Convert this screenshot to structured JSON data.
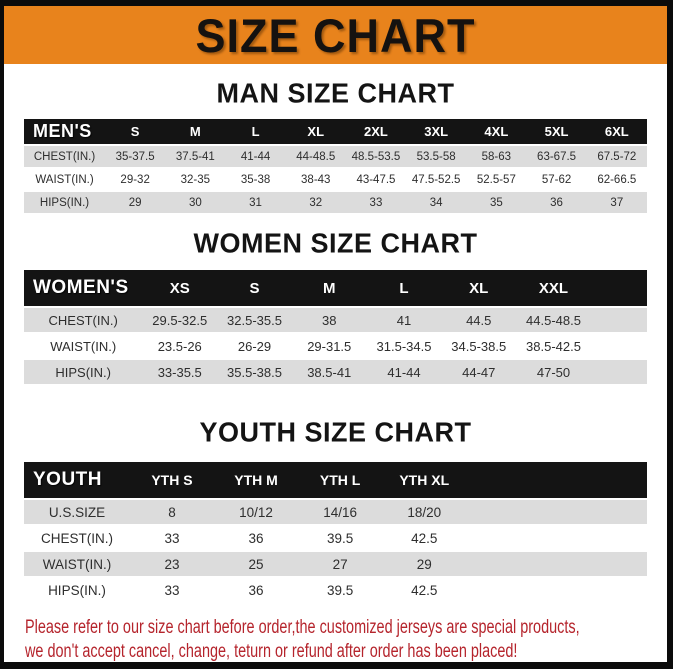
{
  "title": "SIZE CHART",
  "colors": {
    "banner_orange": "#E8831C",
    "table_header_black": "#141414",
    "row_stripe_gray": "#DCDCDC",
    "notice_red": "#B5242C"
  },
  "sections": [
    {
      "id": "men",
      "heading": "MAN SIZE CHART",
      "corner_label": "MEN'S",
      "sizes": [
        "S",
        "M",
        "L",
        "XL",
        "2XL",
        "3XL",
        "4XL",
        "5XL",
        "6XL"
      ],
      "rows": [
        {
          "label": "CHEST(IN.)",
          "values": [
            "35-37.5",
            "37.5-41",
            "41-44",
            "44-48.5",
            "48.5-53.5",
            "53.5-58",
            "58-63",
            "63-67.5",
            "67.5-72"
          ]
        },
        {
          "label": "WAIST(IN.)",
          "values": [
            "29-32",
            "32-35",
            "35-38",
            "38-43",
            "43-47.5",
            "47.5-52.5",
            "52.5-57",
            "57-62",
            "62-66.5"
          ]
        },
        {
          "label": "HIPS(IN.)",
          "values": [
            "29",
            "30",
            "31",
            "32",
            "33",
            "34",
            "35",
            "36",
            "37"
          ]
        }
      ]
    },
    {
      "id": "women",
      "heading": "WOMEN SIZE CHART",
      "corner_label": "WOMEN'S",
      "sizes": [
        "XS",
        "S",
        "M",
        "L",
        "XL",
        "XXL"
      ],
      "rows": [
        {
          "label": "CHEST(IN.)",
          "values": [
            "29.5-32.5",
            "32.5-35.5",
            "38",
            "41",
            "44.5",
            "44.5-48.5"
          ]
        },
        {
          "label": "WAIST(IN.)",
          "values": [
            "23.5-26",
            "26-29",
            "29-31.5",
            "31.5-34.5",
            "34.5-38.5",
            "38.5-42.5"
          ]
        },
        {
          "label": "HIPS(IN.)",
          "values": [
            "33-35.5",
            "35.5-38.5",
            "38.5-41",
            "41-44",
            "44-47",
            "47-50"
          ]
        }
      ]
    },
    {
      "id": "youth",
      "heading": "YOUTH SIZE CHART",
      "corner_label": "YOUTH",
      "sizes": [
        "YTH S",
        "YTH M",
        "YTH L",
        "YTH XL"
      ],
      "rows": [
        {
          "label": "U.S.SIZE",
          "values": [
            "8",
            "10/12",
            "14/16",
            "18/20"
          ]
        },
        {
          "label": "CHEST(IN.)",
          "values": [
            "33",
            "36",
            "39.5",
            "42.5"
          ]
        },
        {
          "label": "WAIST(IN.)",
          "values": [
            "23",
            "25",
            "27",
            "29"
          ]
        },
        {
          "label": "HIPS(IN.)",
          "values": [
            "33",
            "36",
            "39.5",
            "42.5"
          ]
        }
      ]
    }
  ],
  "notice": {
    "line1": "Please refer to our size chart before order,the customized jerseys are special products,",
    "line2": "we don't accept cancel, change, teturn or refund after order has been placed!"
  }
}
